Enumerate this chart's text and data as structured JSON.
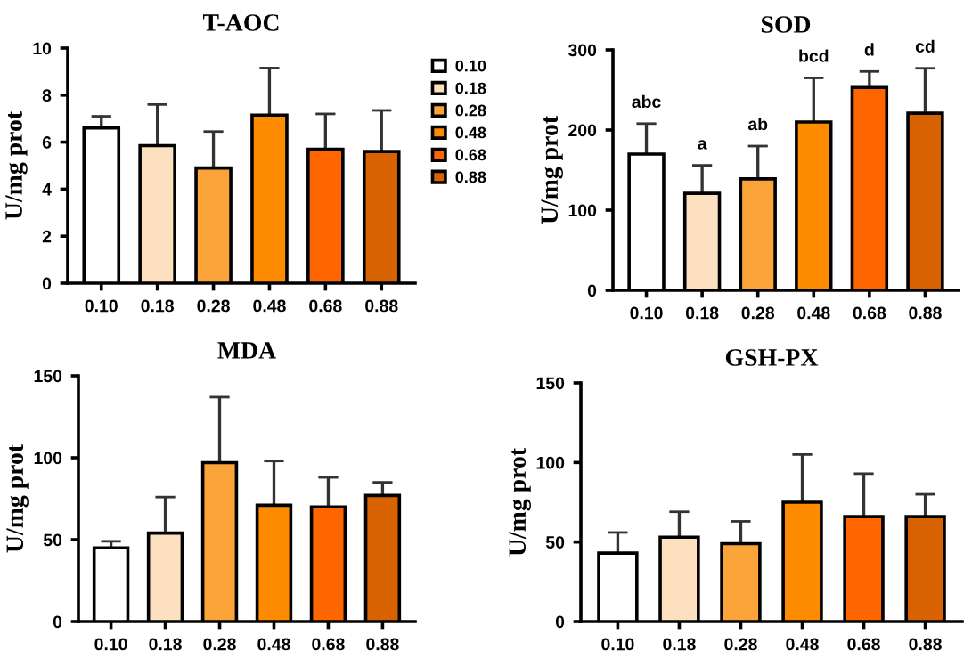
{
  "chart_data": [
    {
      "type": "bar",
      "title": "T-AOC",
      "ylabel": "U/mg prot",
      "categories": [
        "0.10",
        "0.18",
        "0.28",
        "0.48",
        "0.68",
        "0.88"
      ],
      "series": [
        {
          "name": "0.10",
          "color": "#ffffff",
          "values": [
            6.6,
            null,
            null,
            null,
            null,
            null
          ],
          "errors": [
            0.5,
            null,
            null,
            null,
            null,
            null
          ]
        },
        {
          "name": "0.18",
          "color": "#fde0c0",
          "values": [
            null,
            5.85,
            null,
            null,
            null,
            null
          ],
          "errors": [
            null,
            1.75,
            null,
            null,
            null,
            null
          ]
        },
        {
          "name": "0.28",
          "color": "#fba43a",
          "values": [
            null,
            null,
            4.9,
            null,
            null,
            null
          ],
          "errors": [
            null,
            null,
            1.55,
            null,
            null,
            null
          ]
        },
        {
          "name": "0.48",
          "color": "#ff8c00",
          "values": [
            null,
            null,
            null,
            7.15,
            null,
            null
          ],
          "errors": [
            null,
            null,
            null,
            2.0,
            null,
            null
          ]
        },
        {
          "name": "0.68",
          "color": "#ff6600",
          "values": [
            null,
            null,
            null,
            null,
            5.7,
            null
          ],
          "errors": [
            null,
            null,
            null,
            null,
            1.5,
            null
          ]
        },
        {
          "name": "0.88",
          "color": "#d96200",
          "values": [
            null,
            null,
            null,
            null,
            null,
            5.6
          ],
          "errors": [
            null,
            null,
            null,
            null,
            null,
            1.75
          ]
        }
      ],
      "ylim": [
        0,
        10
      ],
      "yticks": [
        0,
        2,
        4,
        6,
        8,
        10
      ],
      "grid": false,
      "legend": "right"
    },
    {
      "type": "bar",
      "title": "SOD",
      "ylabel": "U/mg prot",
      "categories": [
        "0.10",
        "0.18",
        "0.28",
        "0.48",
        "0.68",
        "0.88"
      ],
      "values": [
        170,
        121,
        139,
        210,
        253,
        221
      ],
      "errors": [
        38,
        35,
        41,
        55,
        20,
        56
      ],
      "colors": [
        "#ffffff",
        "#fde0c0",
        "#fba43a",
        "#ff8c00",
        "#ff6600",
        "#d96200"
      ],
      "ylim": [
        0,
        300
      ],
      "yticks": [
        0,
        100,
        200,
        300
      ],
      "grid": false,
      "annotations": [
        {
          "text": "abc",
          "x": "0.10",
          "y": 208
        },
        {
          "text": "a",
          "x": "0.18",
          "y": 156
        },
        {
          "text": "ab",
          "x": "0.28",
          "y": 180
        },
        {
          "text": "bcd",
          "x": "0.48",
          "y": 265
        },
        {
          "text": "d",
          "x": "0.68",
          "y": 273
        },
        {
          "text": "cd",
          "x": "0.88",
          "y": 277
        }
      ]
    },
    {
      "type": "bar",
      "title": "MDA",
      "ylabel": "U/mg prot",
      "categories": [
        "0.10",
        "0.18",
        "0.28",
        "0.48",
        "0.68",
        "0.88"
      ],
      "values": [
        45,
        54,
        97,
        71,
        70,
        77
      ],
      "errors": [
        4,
        22,
        40,
        27,
        18,
        8
      ],
      "colors": [
        "#ffffff",
        "#fde0c0",
        "#fba43a",
        "#ff8c00",
        "#ff6600",
        "#d96200"
      ],
      "ylim": [
        0,
        150
      ],
      "yticks": [
        0,
        50,
        100,
        150
      ],
      "grid": false
    },
    {
      "type": "bar",
      "title": "GSH-PX",
      "ylabel": "U/mg prot",
      "categories": [
        "0.10",
        "0.18",
        "0.28",
        "0.48",
        "0.68",
        "0.88"
      ],
      "values": [
        43,
        53,
        49,
        75,
        66,
        66
      ],
      "errors": [
        13,
        16,
        14,
        30,
        27,
        14
      ],
      "colors": [
        "#ffffff",
        "#fde0c0",
        "#fba43a",
        "#ff8c00",
        "#ff6600",
        "#d96200"
      ],
      "ylim": [
        0,
        150
      ],
      "yticks": [
        0,
        50,
        100,
        150
      ],
      "grid": false
    }
  ]
}
